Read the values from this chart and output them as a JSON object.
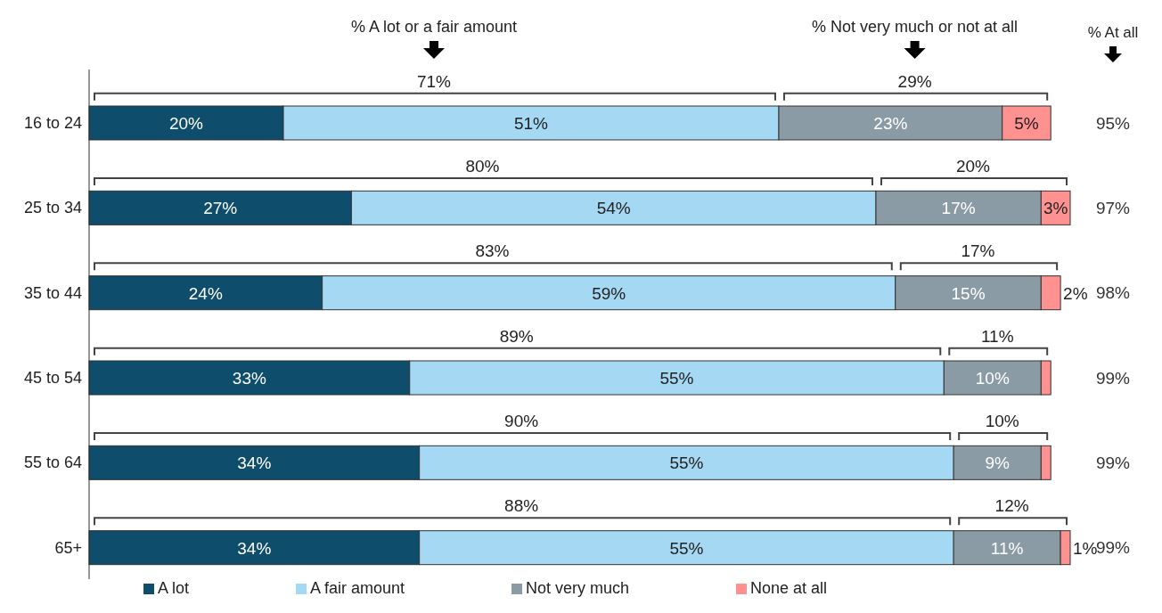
{
  "chart_data": {
    "type": "bar",
    "orientation": "horizontal",
    "stacked": true,
    "legend": "bottom",
    "categories": [
      "16 to 24",
      "25 to 34",
      "35 to 44",
      "45 to 54",
      "55 to 64",
      "65+"
    ],
    "series": [
      {
        "name": "A lot",
        "color": "#0e4d6b",
        "values": [
          20,
          27,
          24,
          33,
          34,
          34
        ],
        "value_labels": [
          "20%",
          "27%",
          "24%",
          "33%",
          "34%",
          "34%"
        ]
      },
      {
        "name": "A fair amount",
        "color": "#a5d8f3",
        "values": [
          51,
          54,
          59,
          55,
          55,
          55
        ],
        "value_labels": [
          "51%",
          "54%",
          "59%",
          "55%",
          "55%",
          "55%"
        ]
      },
      {
        "name": "Not very much",
        "color": "#8a9ba5",
        "values": [
          23,
          17,
          15,
          10,
          9,
          11
        ],
        "value_labels": [
          "23%",
          "17%",
          "15%",
          "10%",
          "9%",
          "11%"
        ]
      },
      {
        "name": "None at all",
        "color": "#ff9191",
        "values": [
          5,
          3,
          2,
          1,
          1,
          1
        ],
        "value_labels": [
          "5%",
          "3%",
          "2%",
          null,
          null,
          "1%"
        ]
      }
    ],
    "annotations": [
      "% A lot or a fair amount",
      "% Not very much or not at all",
      "% At all",
      "71%",
      "29%",
      "95%",
      "80%",
      "20%",
      "97%",
      "83%",
      "17%",
      "98%",
      "89%",
      "11%",
      "99%",
      "90%",
      "10%",
      "99%",
      "88%",
      "12%",
      "99%"
    ]
  }
}
